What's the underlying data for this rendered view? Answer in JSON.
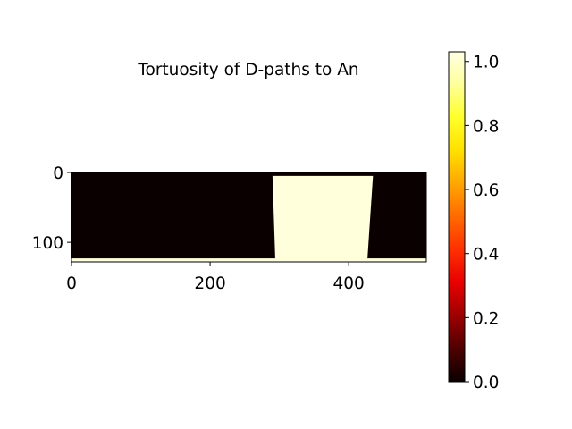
{
  "chart_data": {
    "type": "heatmap",
    "title": "Tortuosity of D-paths to An",
    "image_shape": {
      "rows": 128,
      "cols": 512
    },
    "x_ticks": [
      0,
      200,
      400
    ],
    "y_ticks": [
      0,
      100
    ],
    "xlim": [
      0,
      512
    ],
    "ylim": [
      128,
      0
    ],
    "colormap": "hot",
    "colorbar": {
      "range": [
        0.0,
        1.03
      ],
      "ticks": [
        0.0,
        0.2,
        0.4,
        0.6,
        0.8,
        1.0
      ],
      "tick_labels": [
        "0.0",
        "0.2",
        "0.4",
        "0.6",
        "0.8",
        "1.0"
      ],
      "gradient_colors": [
        "#0b0000",
        "#4f0000",
        "#9e0000",
        "#e80000",
        "#ff3000",
        "#ff6a00",
        "#ffa600",
        "#ffe000",
        "#ffff2a",
        "#ffff9a",
        "#ffffe6"
      ]
    },
    "regions": [
      {
        "label": "background",
        "value": 0.0,
        "color": "#0b0000"
      },
      {
        "label": "central band",
        "value": 1.0,
        "color": "#ffffdc",
        "x_range_top": [
          290,
          435
        ],
        "x_range_bottom": [
          294,
          427
        ],
        "y_range": [
          5,
          124
        ]
      },
      {
        "label": "bottom strip",
        "value": 1.0,
        "color": "#ffffdc",
        "y_range": [
          123,
          128
        ]
      }
    ]
  }
}
